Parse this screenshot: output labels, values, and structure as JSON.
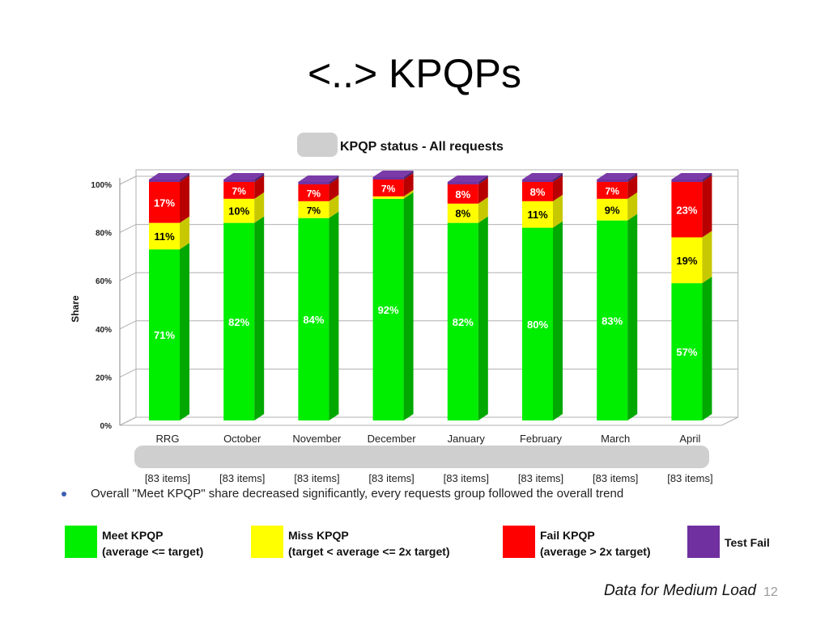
{
  "slide": {
    "title": "<..> KPQPs",
    "bullet": "Overall \"Meet KPQP\" share decreased significantly, every requests group followed the overall trend",
    "footnote": "Data for Medium Load",
    "page_number": "12"
  },
  "colors": {
    "meet": "#00ee00",
    "miss": "#ffff00",
    "fail": "#ff0000",
    "test_fail": "#7030a0"
  },
  "legend": [
    {
      "line1": "Meet KPQP",
      "line2": "(average <= target)",
      "color": "#00ee00"
    },
    {
      "line1": "Miss KPQP",
      "line2": "(target < average <= 2x target)",
      "color": "#ffff00"
    },
    {
      "line1": "Fail KPQP",
      "line2": "(average > 2x target)",
      "color": "#ff0000"
    },
    {
      "line1": "Test Fail",
      "line2": "",
      "color": "#7030a0"
    }
  ],
  "chart_data": {
    "type": "bar",
    "stacked": true,
    "title": "KPQP status - All requests",
    "ylabel": "Share",
    "ylim": [
      0,
      100
    ],
    "yticks": [
      "0%",
      "20%",
      "40%",
      "60%",
      "80%",
      "100%"
    ],
    "categories": [
      "RRG",
      "October",
      "November",
      "December",
      "January",
      "February",
      "March",
      "April"
    ],
    "sublabels": [
      "[83 items]",
      "[83 items]",
      "[83 items]",
      "[83 items]",
      "[83 items]",
      "[83 items]",
      "[83 items]",
      "[83 items]"
    ],
    "series": [
      {
        "name": "Meet KPQP",
        "values": [
          71,
          82,
          84,
          92,
          82,
          80,
          83,
          57
        ],
        "labels": [
          "71%",
          "82%",
          "84%",
          "92%",
          "82%",
          "80%",
          "83%",
          "57%"
        ]
      },
      {
        "name": "Miss KPQP",
        "values": [
          11,
          10,
          7,
          1,
          8,
          11,
          9,
          19
        ],
        "labels": [
          "11%",
          "10%",
          "7%",
          "",
          "8%",
          "11%",
          "9%",
          "19%"
        ]
      },
      {
        "name": "Fail KPQP",
        "values": [
          17,
          7,
          7,
          7,
          8,
          8,
          7,
          23
        ],
        "labels": [
          "17%",
          "7%",
          "7%",
          "7%",
          "8%",
          "8%",
          "7%",
          "23%"
        ]
      },
      {
        "name": "Test Fail",
        "values": [
          1,
          1,
          1,
          1,
          1,
          1,
          1,
          1
        ],
        "labels": [
          "",
          "",
          "",
          "",
          "",
          "",
          "",
          ""
        ]
      }
    ],
    "grid": true
  }
}
